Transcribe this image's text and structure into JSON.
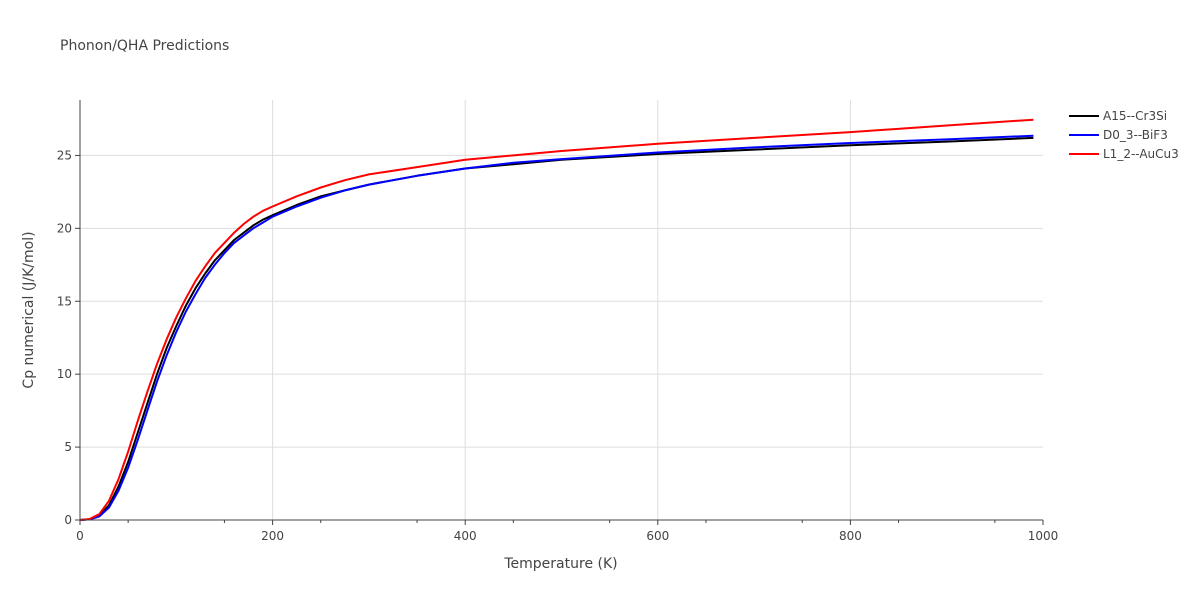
{
  "chart_data": {
    "type": "line",
    "title": "Phonon/QHA Predictions",
    "xlabel": "Temperature (K)",
    "ylabel": "Cp numerical (J/K/mol)",
    "xlim": [
      0,
      1000
    ],
    "ylim": [
      0,
      28.8
    ],
    "xticks": [
      0,
      200,
      400,
      600,
      800,
      1000
    ],
    "yticks": [
      0,
      5,
      10,
      15,
      20,
      25
    ],
    "grid": true,
    "legend_position": "top-right",
    "series": [
      {
        "name": "A15--Cr3Si",
        "color": "#000000",
        "x": [
          0,
          10,
          20,
          30,
          40,
          50,
          60,
          70,
          80,
          90,
          100,
          110,
          120,
          130,
          140,
          150,
          160,
          170,
          180,
          190,
          200,
          225,
          250,
          275,
          300,
          350,
          400,
          450,
          500,
          600,
          700,
          800,
          900,
          990
        ],
        "y": [
          0,
          0.05,
          0.3,
          1.0,
          2.3,
          4.0,
          6.0,
          8.0,
          10.0,
          11.8,
          13.3,
          14.7,
          15.9,
          16.9,
          17.8,
          18.5,
          19.2,
          19.7,
          20.2,
          20.6,
          20.9,
          21.6,
          22.2,
          22.6,
          23.0,
          23.6,
          24.1,
          24.4,
          24.7,
          25.1,
          25.4,
          25.7,
          25.95,
          26.2
        ]
      },
      {
        "name": "D0_3--BiF3",
        "color": "#0000ff",
        "x": [
          0,
          10,
          20,
          30,
          40,
          50,
          60,
          70,
          80,
          90,
          100,
          110,
          120,
          130,
          140,
          150,
          160,
          170,
          180,
          190,
          200,
          225,
          250,
          275,
          300,
          350,
          400,
          450,
          500,
          600,
          700,
          800,
          900,
          990
        ],
        "y": [
          0,
          0.04,
          0.25,
          0.85,
          2.0,
          3.6,
          5.5,
          7.5,
          9.5,
          11.3,
          12.9,
          14.3,
          15.5,
          16.6,
          17.5,
          18.3,
          19.0,
          19.5,
          20.0,
          20.4,
          20.8,
          21.5,
          22.1,
          22.6,
          23.0,
          23.6,
          24.1,
          24.5,
          24.75,
          25.2,
          25.55,
          25.85,
          26.1,
          26.35
        ]
      },
      {
        "name": "L1_2--AuCu3",
        "color": "#ff0000",
        "x": [
          0,
          10,
          20,
          30,
          40,
          50,
          60,
          70,
          80,
          90,
          100,
          110,
          120,
          130,
          140,
          150,
          160,
          170,
          180,
          190,
          200,
          225,
          250,
          275,
          300,
          350,
          400,
          450,
          500,
          600,
          700,
          800,
          900,
          990
        ],
        "y": [
          0,
          0.07,
          0.4,
          1.3,
          2.8,
          4.7,
          6.8,
          8.8,
          10.7,
          12.4,
          13.9,
          15.2,
          16.4,
          17.4,
          18.3,
          19.0,
          19.7,
          20.3,
          20.8,
          21.2,
          21.5,
          22.2,
          22.8,
          23.3,
          23.7,
          24.2,
          24.7,
          25.0,
          25.3,
          25.8,
          26.2,
          26.6,
          27.05,
          27.45
        ]
      }
    ]
  }
}
